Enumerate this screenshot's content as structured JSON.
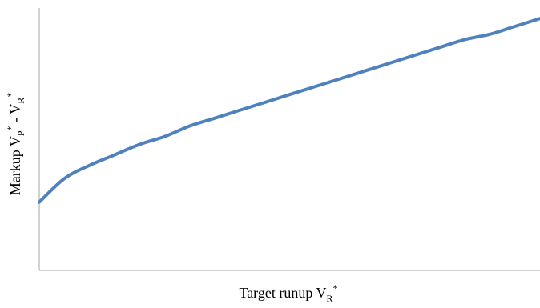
{
  "chart_data": {
    "type": "line",
    "title": "",
    "xlabel": {
      "main": "Target runup V",
      "sub": "R",
      "sup": "*"
    },
    "ylabel": {
      "main": "Markup V",
      "sub1": "P",
      "sup1": "*",
      "mid": " - V",
      "sub2": "R",
      "sup2": "*"
    },
    "xlim": [
      0,
      1
    ],
    "ylim": [
      0,
      1
    ],
    "x_ticks": [],
    "y_ticks": [],
    "grid": false,
    "legend": "none",
    "series": [
      {
        "color": "#4f81bd",
        "points": [
          [
            0.0,
            0.26
          ],
          [
            0.05,
            0.35
          ],
          [
            0.1,
            0.4
          ],
          [
            0.15,
            0.44
          ],
          [
            0.2,
            0.48
          ],
          [
            0.25,
            0.51
          ],
          [
            0.3,
            0.55
          ],
          [
            0.35,
            0.58
          ],
          [
            0.4,
            0.61
          ],
          [
            0.45,
            0.64
          ],
          [
            0.5,
            0.67
          ],
          [
            0.55,
            0.7
          ],
          [
            0.6,
            0.73
          ],
          [
            0.65,
            0.76
          ],
          [
            0.7,
            0.79
          ],
          [
            0.75,
            0.82
          ],
          [
            0.8,
            0.85
          ],
          [
            0.85,
            0.88
          ],
          [
            0.9,
            0.9
          ],
          [
            0.95,
            0.93
          ],
          [
            1.0,
            0.96
          ]
        ]
      }
    ],
    "axis_color": "#a6a6a6"
  }
}
